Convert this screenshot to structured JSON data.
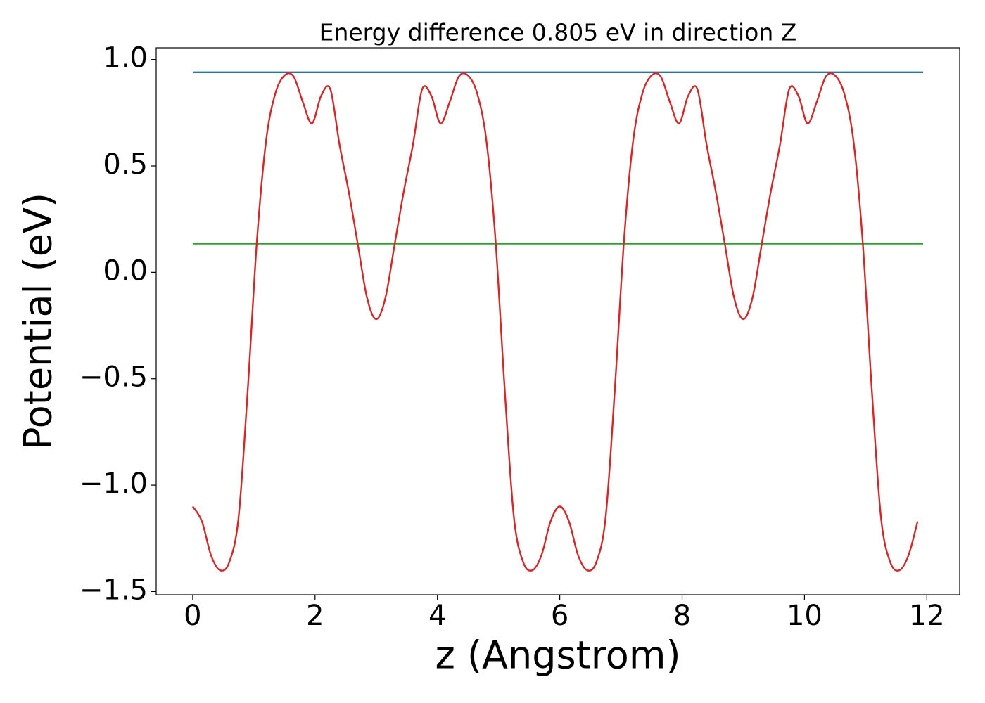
{
  "chart_data": {
    "type": "line",
    "title": "Energy difference 0.805 eV in direction Z",
    "xlabel": "z (Angstrom)",
    "ylabel": "Potential (eV)",
    "xlim": [
      -0.597,
      12.537
    ],
    "ylim": [
      -1.515,
      1.055
    ],
    "xticks": [
      0,
      2,
      4,
      6,
      8,
      10,
      12
    ],
    "yticks": [
      {
        "value": -1.5,
        "label": "−1.5"
      },
      {
        "value": -1.0,
        "label": "−1.0"
      },
      {
        "value": -0.5,
        "label": "−0.5"
      },
      {
        "value": 0.0,
        "label": "0.0"
      },
      0.5,
      {
        "value": 1.0,
        "label": "1.0"
      }
    ],
    "grid": false,
    "series": [
      {
        "color": "#1f77b4",
        "x": [
          0,
          11.94
        ],
        "values": [
          0.94,
          0.94
        ]
      },
      {
        "color": "#2ca02c",
        "x": [
          0,
          11.94
        ],
        "values": [
          0.135,
          0.135
        ]
      },
      {
        "color": "#d62728",
        "x": [
          0,
          0.15,
          0.3,
          0.45,
          0.6,
          0.75,
          0.9,
          1.05,
          1.2,
          1.35,
          1.5,
          1.65,
          1.8,
          1.95,
          2.1,
          2.25,
          2.4,
          2.55,
          2.7,
          2.85,
          3.0,
          3.15,
          3.3,
          3.45,
          3.6,
          3.75,
          3.9,
          4.05,
          4.2,
          4.35,
          4.5,
          4.65,
          4.8,
          4.95,
          5.1,
          5.25,
          5.4,
          5.55,
          5.7,
          5.85,
          6.0,
          6.15,
          6.3,
          6.45,
          6.6,
          6.75,
          6.9,
          7.05,
          7.2,
          7.35,
          7.5,
          7.65,
          7.8,
          7.95,
          8.1,
          8.25,
          8.4,
          8.55,
          8.7,
          8.85,
          9.0,
          9.15,
          9.3,
          9.45,
          9.6,
          9.75,
          9.9,
          10.05,
          10.2,
          10.35,
          10.5,
          10.65,
          10.8,
          10.95,
          11.1,
          11.25,
          11.4,
          11.55,
          11.7,
          11.85
        ],
        "values": [
          -1.1,
          -1.17,
          -1.33,
          -1.4,
          -1.36,
          -1.15,
          -0.55,
          0.15,
          0.62,
          0.84,
          0.925,
          0.92,
          0.8,
          0.7,
          0.83,
          0.86,
          0.6,
          0.38,
          0.13,
          -0.12,
          -0.22,
          -0.12,
          0.13,
          0.38,
          0.6,
          0.86,
          0.83,
          0.7,
          0.8,
          0.92,
          0.925,
          0.84,
          0.62,
          0.15,
          -0.55,
          -1.15,
          -1.36,
          -1.4,
          -1.33,
          -1.17,
          -1.1,
          -1.17,
          -1.33,
          -1.4,
          -1.36,
          -1.15,
          -0.55,
          0.15,
          0.62,
          0.84,
          0.925,
          0.92,
          0.8,
          0.7,
          0.83,
          0.86,
          0.6,
          0.38,
          0.13,
          -0.12,
          -0.22,
          -0.12,
          0.13,
          0.38,
          0.6,
          0.86,
          0.83,
          0.7,
          0.8,
          0.92,
          0.925,
          0.84,
          0.62,
          0.15,
          -0.55,
          -1.15,
          -1.36,
          -1.4,
          -1.33,
          -1.17
        ]
      }
    ]
  }
}
